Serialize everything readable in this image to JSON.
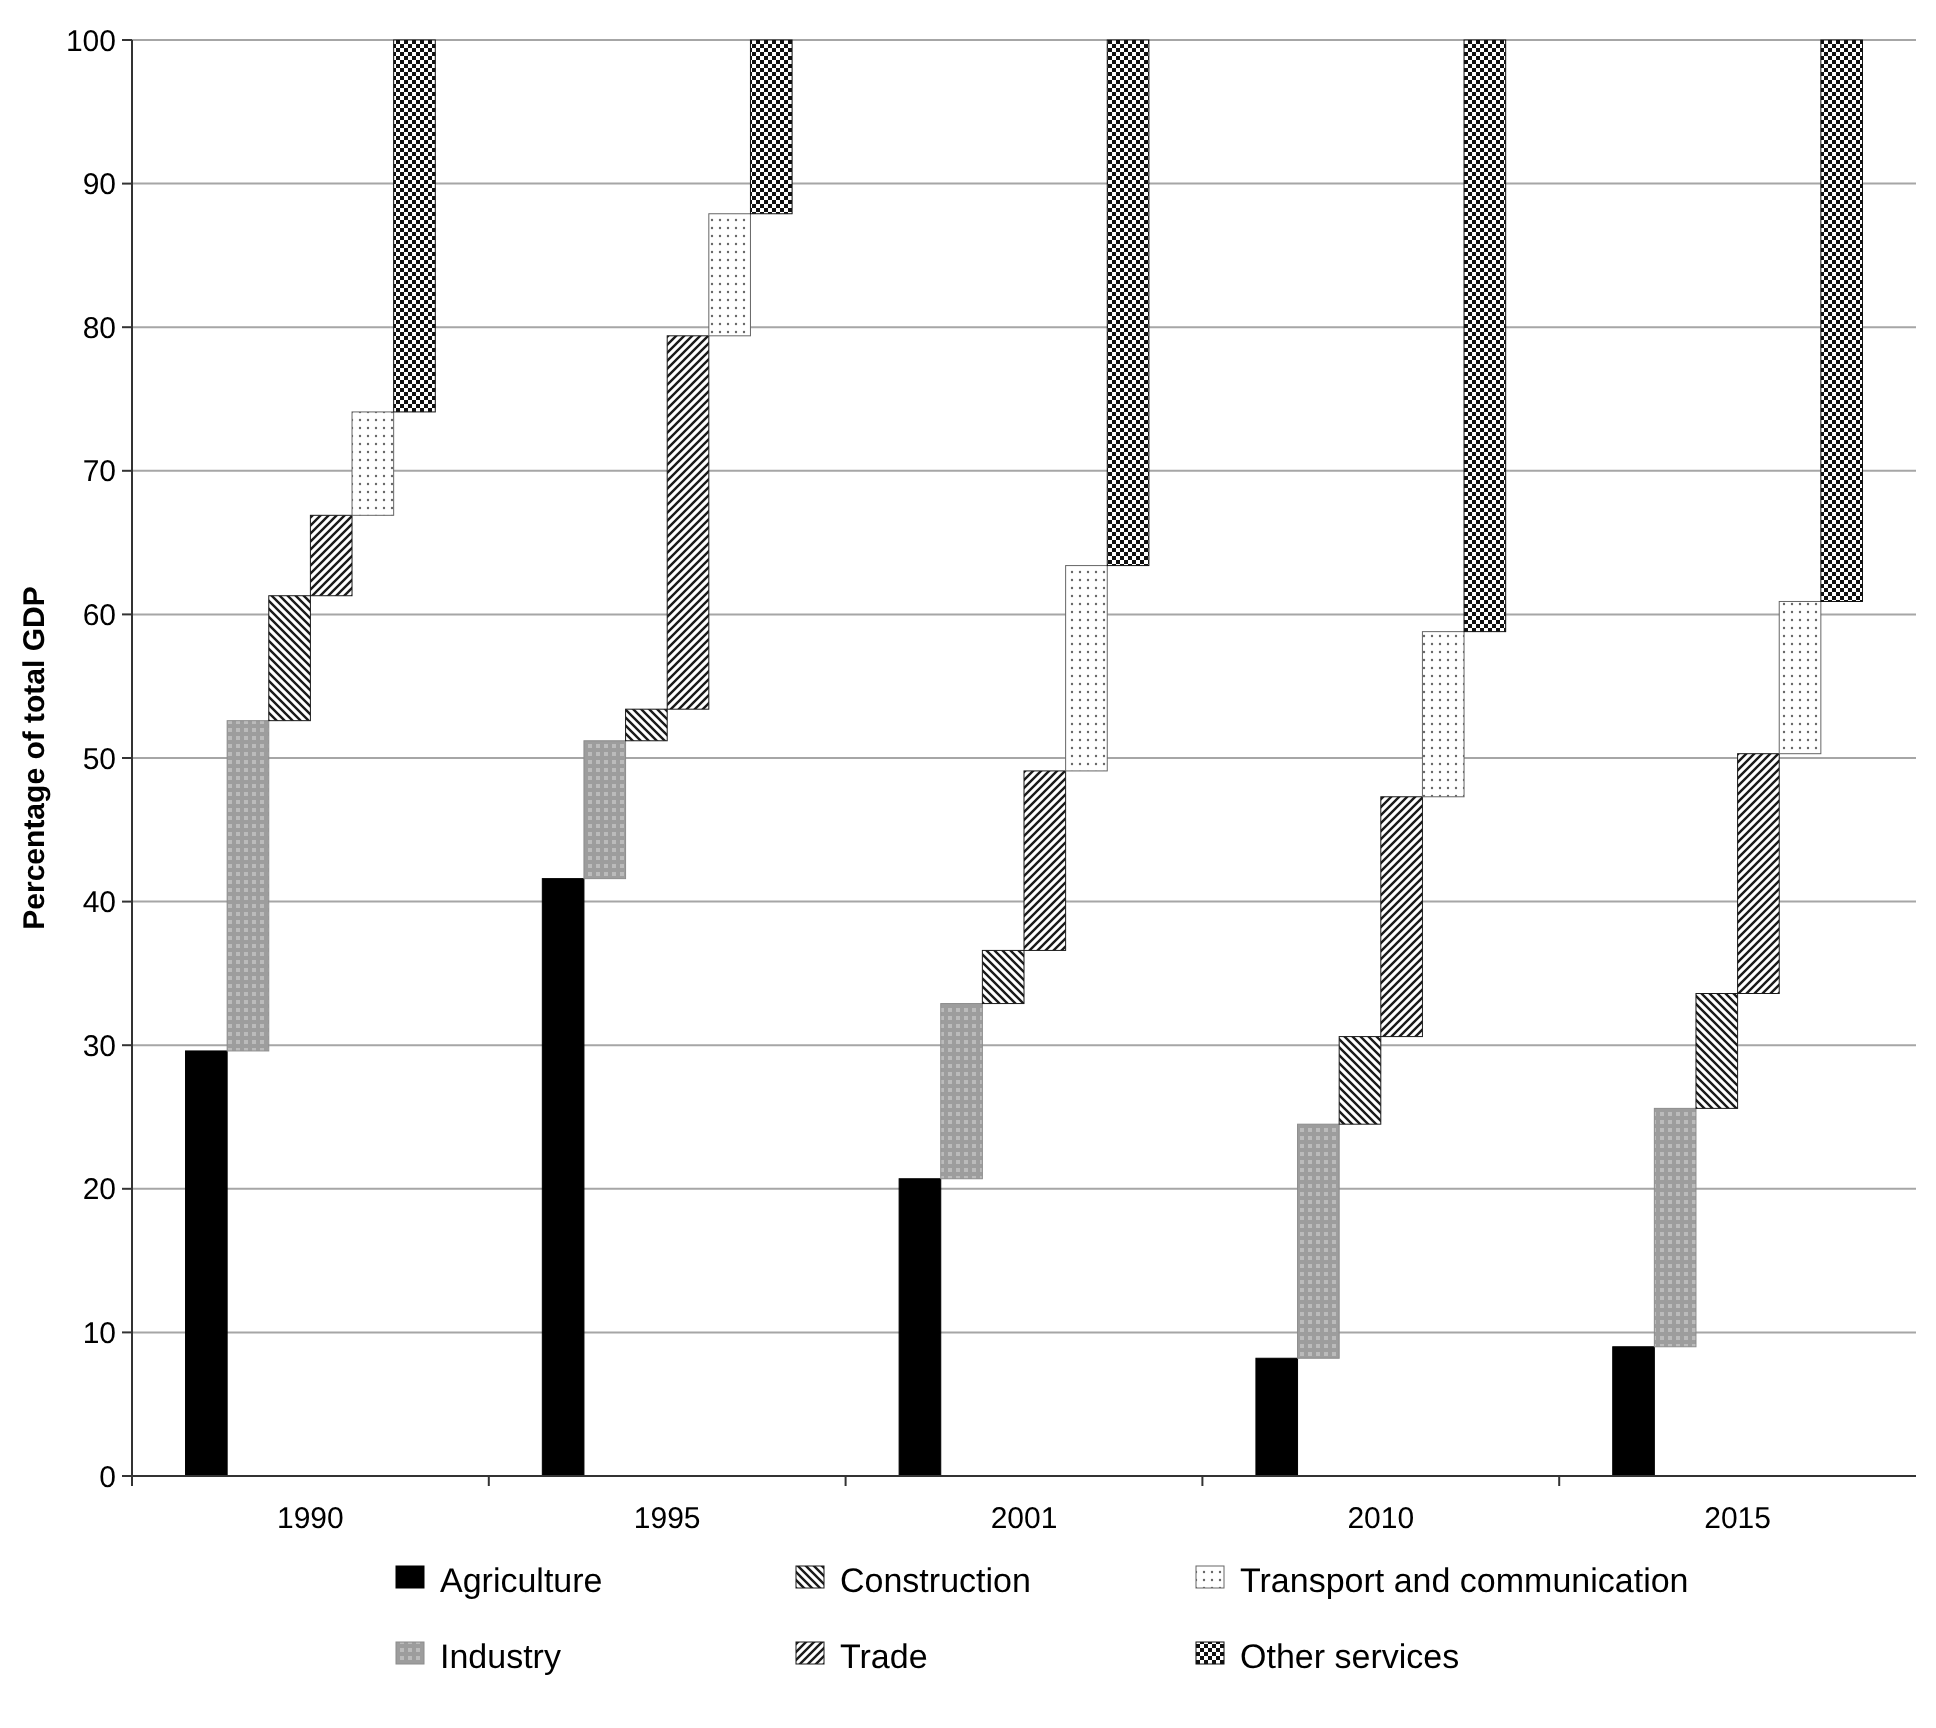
{
  "chart_data": {
    "type": "bar",
    "ylabel": "Percentage of total GDP",
    "categories": [
      "1990",
      "1995",
      "2001",
      "2010",
      "2015"
    ],
    "series": [
      {
        "name": "Agriculture",
        "color": "#000000",
        "values": [
          29.6,
          41.6,
          20.7,
          8.2,
          9.0
        ],
        "base": [
          0,
          0,
          0,
          0,
          0
        ]
      },
      {
        "name": "Industry",
        "color": "#8c8c8c",
        "values": [
          23.0,
          9.6,
          12.2,
          16.3,
          16.6
        ],
        "base": [
          29.6,
          41.6,
          20.7,
          8.2,
          9.0
        ]
      },
      {
        "name": "Construction",
        "color": "#1a1a1a",
        "values": [
          8.7,
          2.2,
          3.7,
          6.1,
          8.0
        ],
        "base": [
          52.6,
          51.2,
          32.9,
          24.5,
          25.6
        ]
      },
      {
        "name": "Trade",
        "color": "#1a1a1a",
        "values": [
          5.6,
          26.0,
          12.5,
          16.7,
          16.7
        ],
        "base": [
          61.3,
          53.4,
          36.6,
          30.6,
          33.6
        ]
      },
      {
        "name": "Transport and communication",
        "color": "#666666",
        "values": [
          7.2,
          8.5,
          14.3,
          11.5,
          10.6
        ],
        "base": [
          66.9,
          79.4,
          49.1,
          47.3,
          50.3
        ]
      },
      {
        "name": "Other services",
        "color": "#111111",
        "values": [
          25.9,
          12.1,
          36.6,
          41.2,
          39.1
        ],
        "base": [
          74.1,
          87.9,
          63.4,
          58.8,
          60.9
        ]
      }
    ],
    "ylim": [
      0,
      100
    ],
    "yticks": [
      0,
      10,
      20,
      30,
      40,
      50,
      60,
      70,
      80,
      90,
      100
    ],
    "grid": "y",
    "legend": "bottom"
  }
}
